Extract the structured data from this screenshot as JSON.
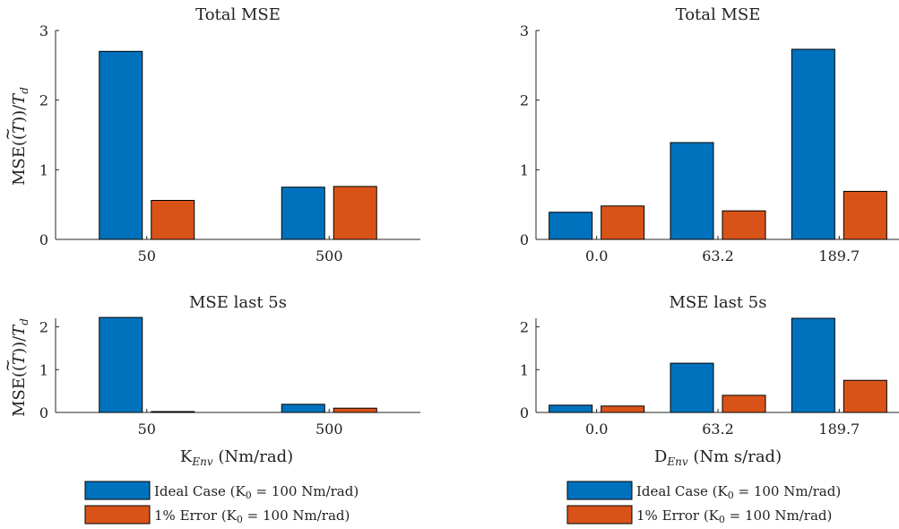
{
  "colors": {
    "ideal": "#0072BD",
    "error": "#D95319",
    "axis": "#262626"
  },
  "ylabel_base": "MSE(",
  "ylabel_sym": "T",
  "ylabel_tilde": "~",
  "ylabel_tail": "))/",
  "ylabel_td": "T",
  "ylabel_td_sub": "d",
  "chart_data": [
    {
      "type": "bar",
      "title": "Total MSE",
      "categories": [
        "50",
        "500"
      ],
      "series": [
        {
          "name": "Ideal Case (K0 = 100 Nm/rad)",
          "values": [
            2.7,
            0.75
          ]
        },
        {
          "name": "1% Error (K0 = 100 Nm/rad)",
          "values": [
            0.56,
            0.76
          ]
        }
      ],
      "ylim": [
        0,
        3
      ],
      "yticks": [
        "0",
        "1",
        "2",
        "3"
      ],
      "ytick_values": [
        0,
        1,
        2,
        3
      ],
      "ylabel": "MSE((T~))/T_d",
      "xlabel": ""
    },
    {
      "type": "bar",
      "title": "Total MSE",
      "categories": [
        "0.0",
        "63.2",
        "189.7"
      ],
      "series": [
        {
          "name": "Ideal Case (K0 = 100 Nm/rad)",
          "values": [
            0.39,
            1.39,
            2.73
          ]
        },
        {
          "name": "1% Error (K0 = 100 Nm/rad)",
          "values": [
            0.48,
            0.41,
            0.69
          ]
        }
      ],
      "ylim": [
        0,
        3
      ],
      "yticks": [
        "0",
        "1",
        "2",
        "3"
      ],
      "ytick_values": [
        0,
        1,
        2,
        3
      ],
      "ylabel": "",
      "xlabel": ""
    },
    {
      "type": "bar",
      "title": "MSE last 5s",
      "categories": [
        "50",
        "500"
      ],
      "series": [
        {
          "name": "Ideal Case (K0 = 100 Nm/rad)",
          "values": [
            2.22,
            0.19
          ]
        },
        {
          "name": "1% Error (K0 = 100 Nm/rad)",
          "values": [
            0.02,
            0.1
          ]
        }
      ],
      "ylim": [
        0,
        2.2
      ],
      "yticks": [
        "0",
        "1",
        "2"
      ],
      "ytick_values": [
        0,
        1,
        2
      ],
      "ylabel": "MSE((T~))/T_d",
      "xlabel": "K_Env (Nm/rad)"
    },
    {
      "type": "bar",
      "title": "MSE last 5s",
      "categories": [
        "0.0",
        "63.2",
        "189.7"
      ],
      "series": [
        {
          "name": "Ideal Case (K0 = 100 Nm/rad)",
          "values": [
            0.17,
            1.15,
            2.2
          ]
        },
        {
          "name": "1% Error (K0 = 100 Nm/rad)",
          "values": [
            0.15,
            0.4,
            0.75
          ]
        }
      ],
      "ylim": [
        0,
        2.2
      ],
      "yticks": [
        "0",
        "1",
        "2"
      ],
      "ytick_values": [
        0,
        1,
        2
      ],
      "ylabel": "",
      "xlabel": "D_Env (Nm s/rad)"
    }
  ],
  "xlabels": [
    {
      "main": "K",
      "sub": "Env",
      "unit": " (Nm/rad)"
    },
    {
      "main": "D",
      "sub": "Env",
      "unit": " (Nm s/rad)"
    }
  ],
  "legend": [
    {
      "prefix": "Ideal Case (K",
      "sub": "0",
      "suffix": " = 100 Nm/rad)"
    },
    {
      "prefix": "1% Error (K",
      "sub": "0",
      "suffix": " = 100 Nm/rad)"
    }
  ]
}
